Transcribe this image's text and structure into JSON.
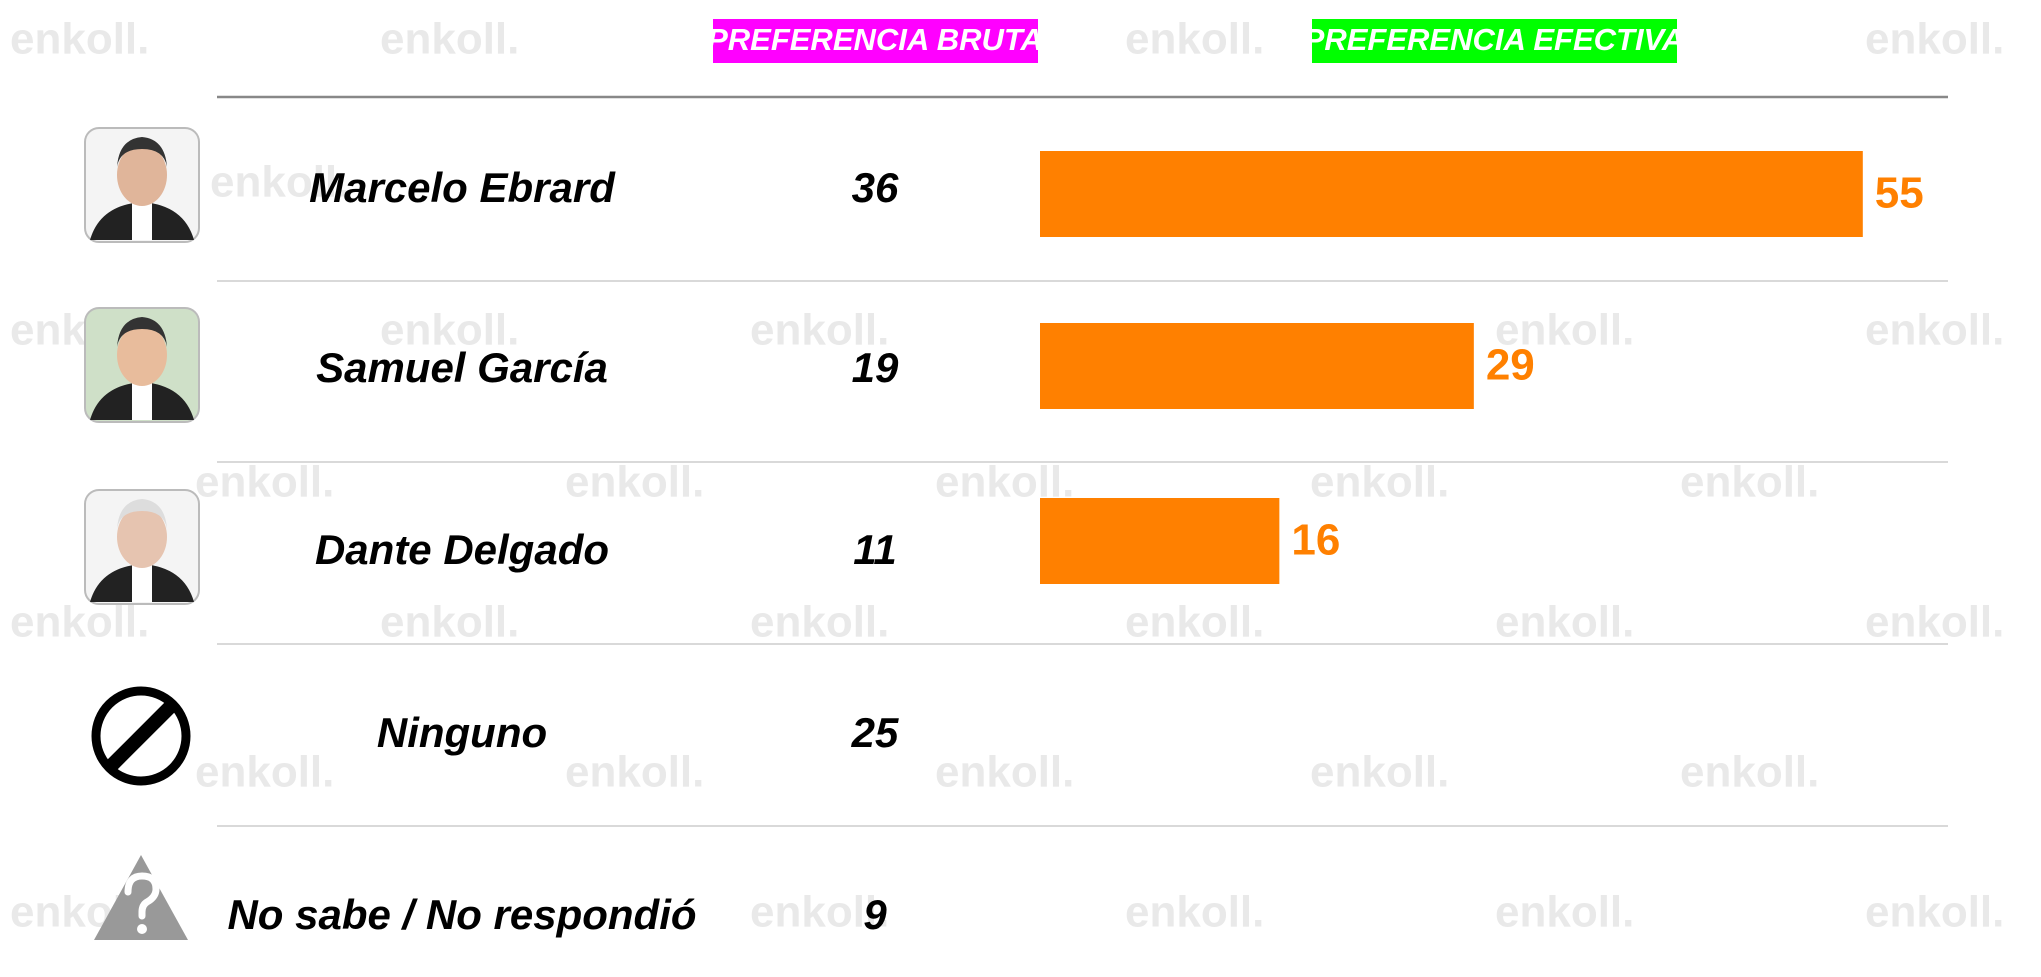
{
  "watermark": "enkoll.",
  "chart_data": {
    "type": "bar",
    "categories": [
      "Marcelo Ebrard",
      "Samuel García",
      "Dante Delgado",
      "Ninguno",
      "No sabe / No respondió"
    ],
    "series": [
      {
        "name": "PREFERENCIA BRUTA",
        "color": "#ff00ff",
        "values": [
          36,
          19,
          11,
          25,
          9
        ]
      },
      {
        "name": "PREFERENCIA EFECTIVA",
        "color": "#00ff00",
        "bar_color": "#ff8000",
        "values": [
          55,
          29,
          16,
          null,
          null
        ]
      }
    ]
  }
}
